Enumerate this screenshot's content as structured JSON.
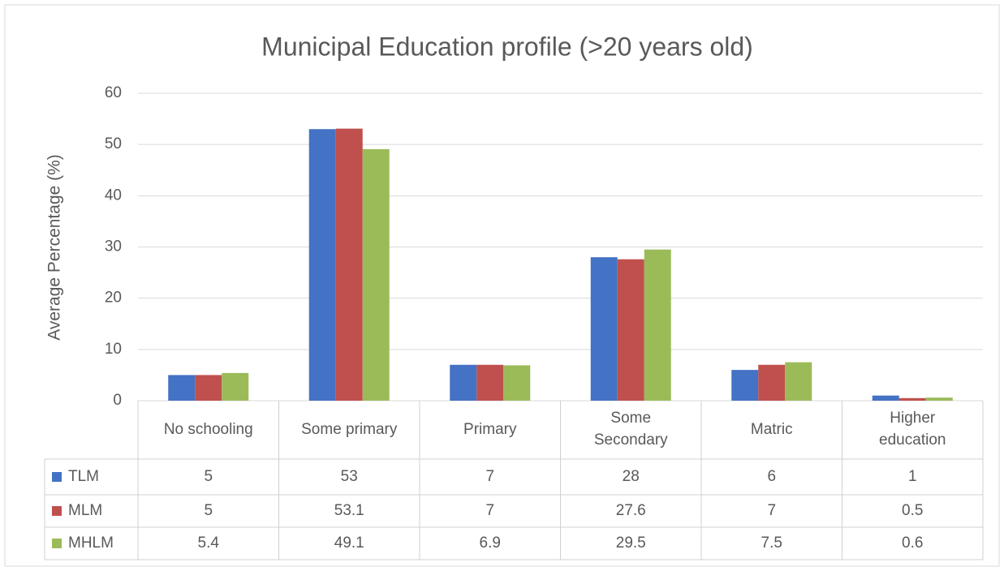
{
  "chart_data": {
    "type": "bar",
    "title": "Municipal Education profile (>20 years old)",
    "y_label": "Average Percentage (%)",
    "categories": [
      "No schooling",
      "Some primary",
      "Primary",
      "Some Secondary",
      "Matric",
      "Higher education"
    ],
    "series": [
      {
        "name": "TLM",
        "color": "#4472c4",
        "values": [
          5,
          53,
          7,
          28,
          6,
          1
        ]
      },
      {
        "name": "MLM",
        "color": "#c0504d",
        "values": [
          5,
          53.1,
          7,
          27.6,
          7,
          0.5
        ]
      },
      {
        "name": "MHLM",
        "color": "#9bbb59",
        "values": [
          5.4,
          49.1,
          6.9,
          29.5,
          7.5,
          0.6
        ]
      }
    ],
    "ylim": [
      0,
      60
    ],
    "yticks": [
      0,
      10,
      20,
      30,
      40,
      50,
      60
    ],
    "grid": true
  }
}
